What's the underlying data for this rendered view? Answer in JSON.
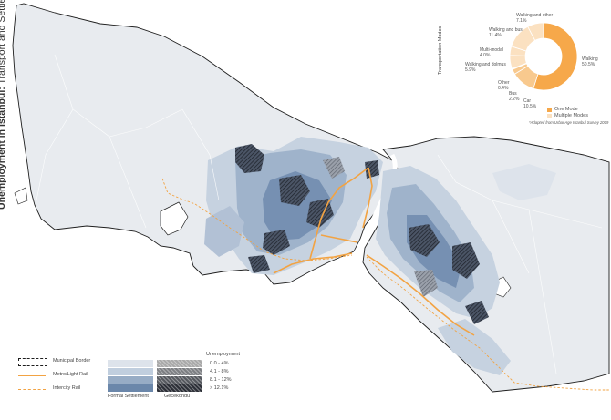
{
  "title": {
    "bold": "Unemployment in Istanbul:",
    "rest": " Transport and Settlement"
  },
  "pie": {
    "title": "Transportation Modes",
    "slices": [
      {
        "label": "Walking",
        "pct": "50.5%",
        "value": 50.5,
        "color": "#f6a84a"
      },
      {
        "label": "Car",
        "pct": "10.5%",
        "value": 10.5,
        "color": "#f8c98e"
      },
      {
        "label": "Bus",
        "pct": "2.2%",
        "value": 2.2,
        "color": "#f8c98e"
      },
      {
        "label": "Other",
        "pct": "0.4%",
        "value": 0.4,
        "color": "#f8c98e"
      },
      {
        "label": "Walking and dolmus",
        "pct": "5.9%",
        "value": 5.9,
        "color": "#fbe1c1"
      },
      {
        "label": "Multi-modal",
        "pct": "4.0%",
        "value": 4.0,
        "color": "#fbe1c1"
      },
      {
        "label": "Walking and bus",
        "pct": "11.4%",
        "value": 11.4,
        "color": "#fbe1c1"
      },
      {
        "label": "Walking and other",
        "pct": "7.1%",
        "value": 7.1,
        "color": "#fbe1c1"
      }
    ],
    "legend": {
      "one": "One Mode",
      "multi": "Multiple Modes"
    },
    "note": "*Adapted from UrbanAge Istanbul Survey 2009"
  },
  "legend": {
    "municipal": "Municipal Border",
    "metro": "Metro/Light Rail",
    "intercity": "Intercity Rail",
    "unemp_title": "Unemployment",
    "classes": [
      "0.0 - 4%",
      "4.1 - 8%",
      "8.1 - 12%",
      "> 12.1%"
    ],
    "formal": "Formal Settlement",
    "gecekondu": "Gecekondu"
  },
  "colors": {
    "formal": [
      "#dde3eb",
      "#c0cede",
      "#97acc5",
      "#6b87aa"
    ],
    "gecekondu": [
      "#a9a9a9",
      "#7d7f83",
      "#56595f",
      "#2d3038"
    ],
    "rail": "#f2a343",
    "land": "#e9ecf0",
    "border": "#1e1e1e"
  }
}
